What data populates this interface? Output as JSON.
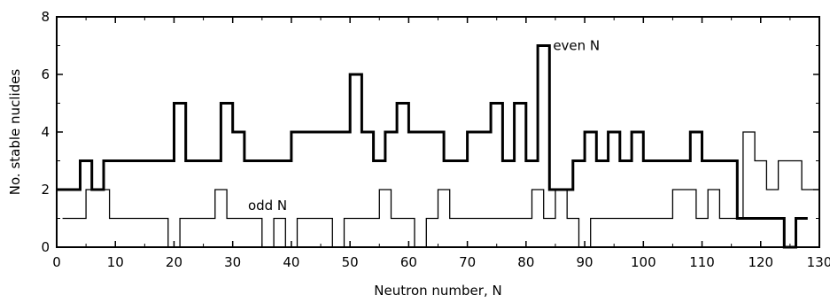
{
  "chart_data": {
    "type": "line",
    "step": true,
    "xlabel": "Neutron number, N",
    "ylabel": "No. stable nuclides",
    "xlim": [
      0,
      130
    ],
    "ylim": [
      0,
      8
    ],
    "xticks": [
      0,
      10,
      20,
      30,
      40,
      50,
      60,
      70,
      80,
      90,
      100,
      110,
      120,
      130
    ],
    "yticks": [
      0,
      2,
      4,
      6,
      8
    ],
    "grid": false,
    "legend": "none",
    "annotations": [
      {
        "text": "even N",
        "x": 84,
        "y": 7,
        "series": "even"
      },
      {
        "text": "odd N",
        "x": 32,
        "y": 1.45,
        "series": "odd"
      }
    ],
    "series": [
      {
        "key": "even",
        "style": "thick",
        "x": [
          0,
          2,
          4,
          6,
          8,
          10,
          12,
          14,
          16,
          18,
          20,
          22,
          24,
          26,
          28,
          30,
          32,
          34,
          36,
          38,
          40,
          42,
          44,
          46,
          48,
          50,
          52,
          54,
          56,
          58,
          60,
          62,
          64,
          66,
          68,
          70,
          72,
          74,
          76,
          78,
          80,
          82,
          84,
          86,
          88,
          90,
          92,
          94,
          96,
          98,
          100,
          102,
          104,
          106,
          108,
          110,
          112,
          114,
          116,
          118,
          120,
          122,
          124,
          126
        ],
        "y": [
          2,
          2,
          3,
          2,
          3,
          3,
          3,
          3,
          3,
          3,
          5,
          3,
          3,
          3,
          5,
          4,
          3,
          3,
          3,
          3,
          4,
          4,
          4,
          4,
          4,
          6,
          4,
          3,
          4,
          5,
          4,
          4,
          4,
          3,
          3,
          4,
          4,
          5,
          3,
          5,
          3,
          7,
          2,
          2,
          3,
          4,
          3,
          4,
          3,
          4,
          3,
          3,
          3,
          3,
          4,
          3,
          3,
          3,
          1,
          1,
          1,
          1,
          0,
          1
        ]
      },
      {
        "key": "odd",
        "style": "thin",
        "x": [
          1,
          3,
          5,
          7,
          9,
          11,
          13,
          15,
          17,
          19,
          21,
          23,
          25,
          27,
          29,
          31,
          33,
          35,
          37,
          39,
          41,
          43,
          45,
          47,
          49,
          51,
          53,
          55,
          57,
          59,
          61,
          63,
          65,
          67,
          69,
          71,
          73,
          75,
          77,
          79,
          81,
          83,
          85,
          87,
          89,
          91,
          93,
          95,
          97,
          99,
          101,
          103,
          105,
          107,
          109,
          111,
          113,
          115,
          117,
          119,
          121,
          123,
          125,
          127
        ],
        "y": [
          1,
          1,
          2,
          2,
          1,
          1,
          1,
          1,
          1,
          0,
          1,
          1,
          1,
          2,
          1,
          1,
          1,
          0,
          1,
          0,
          1,
          1,
          1,
          0,
          1,
          1,
          1,
          2,
          1,
          1,
          0,
          1,
          2,
          1,
          1,
          1,
          1,
          1,
          1,
          1,
          2,
          1,
          2,
          1,
          0,
          1,
          1,
          1,
          1,
          1,
          1,
          1,
          2,
          2,
          1,
          2,
          1,
          1,
          4,
          3,
          2,
          3,
          3,
          2
        ]
      }
    ]
  }
}
